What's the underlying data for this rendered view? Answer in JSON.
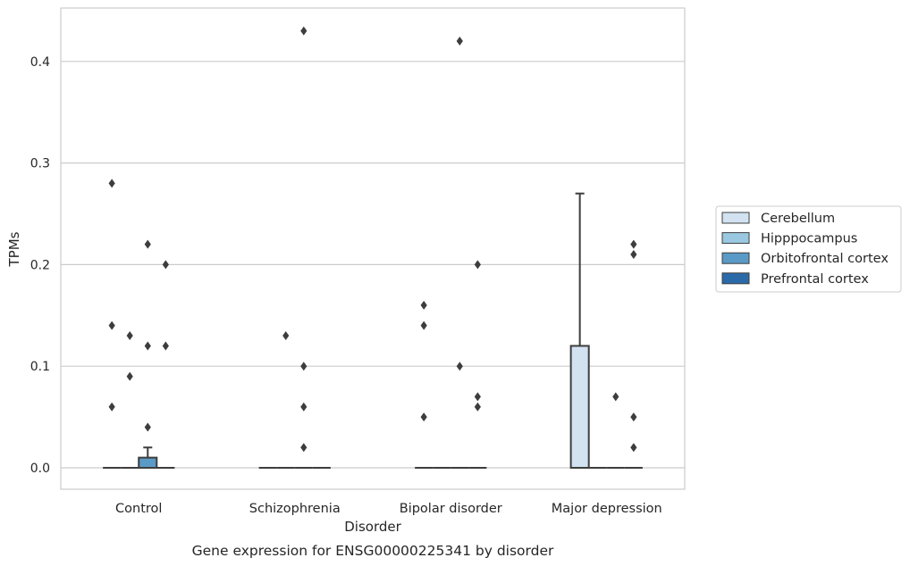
{
  "chart_data": {
    "type": "box",
    "title": "Gene expression for ENSG00000225341 by disorder",
    "xlabel": "Disorder",
    "ylabel": "TPMs",
    "ylim": [
      -0.021,
      0.452
    ],
    "yticks": [
      0.0,
      0.1,
      0.2,
      0.3,
      0.4
    ],
    "ytick_labels": [
      "0.0",
      "0.1",
      "0.2",
      "0.3",
      "0.4"
    ],
    "grid": true,
    "legend_position": "right",
    "categories": [
      "Control",
      "Schizophrenia",
      "Bipolar disorder",
      "Major depression"
    ],
    "series": [
      {
        "name": "Cerebellum",
        "color": "#d2e2f1",
        "boxes": [
          {
            "q1": 0,
            "median": 0,
            "q3": 0,
            "whisker_low": 0,
            "whisker_high": 0,
            "outliers": [
              0.14,
              0.28,
              0.06
            ]
          },
          {
            "q1": 0,
            "median": 0,
            "q3": 0,
            "whisker_low": 0,
            "whisker_high": 0,
            "outliers": []
          },
          {
            "q1": 0,
            "median": 0,
            "q3": 0,
            "whisker_low": 0,
            "whisker_high": 0,
            "outliers": [
              0.16,
              0.14,
              0.05
            ]
          },
          {
            "q1": 0,
            "median": 0,
            "q3": 0.12,
            "whisker_low": 0,
            "whisker_high": 0.27,
            "outliers": []
          }
        ]
      },
      {
        "name": "Hipppocampus",
        "color": "#9ac8e0",
        "boxes": [
          {
            "q1": 0,
            "median": 0,
            "q3": 0,
            "whisker_low": 0,
            "whisker_high": 0,
            "outliers": [
              0.13,
              0.09
            ]
          },
          {
            "q1": 0,
            "median": 0,
            "q3": 0,
            "whisker_low": 0,
            "whisker_high": 0,
            "outliers": [
              0.13
            ]
          },
          {
            "q1": 0,
            "median": 0,
            "q3": 0,
            "whisker_low": 0,
            "whisker_high": 0,
            "outliers": []
          },
          {
            "q1": 0,
            "median": 0,
            "q3": 0,
            "whisker_low": 0,
            "whisker_high": 0,
            "outliers": []
          }
        ]
      },
      {
        "name": "Orbitofrontal cortex",
        "color": "#5a9ac6",
        "boxes": [
          {
            "q1": 0,
            "median": 0,
            "q3": 0.01,
            "whisker_low": 0,
            "whisker_high": 0.02,
            "outliers": [
              0.22,
              0.12,
              0.04
            ]
          },
          {
            "q1": 0,
            "median": 0,
            "q3": 0,
            "whisker_low": 0,
            "whisker_high": 0,
            "outliers": [
              0.43,
              0.1,
              0.06,
              0.02
            ]
          },
          {
            "q1": 0,
            "median": 0,
            "q3": 0,
            "whisker_low": 0,
            "whisker_high": 0,
            "outliers": [
              0.42,
              0.1
            ]
          },
          {
            "q1": 0,
            "median": 0,
            "q3": 0,
            "whisker_low": 0,
            "whisker_high": 0,
            "outliers": [
              0.07
            ]
          }
        ]
      },
      {
        "name": "Prefrontal cortex",
        "color": "#2b6aa8",
        "boxes": [
          {
            "q1": 0,
            "median": 0,
            "q3": 0,
            "whisker_low": 0,
            "whisker_high": 0,
            "outliers": [
              0.2,
              0.12
            ]
          },
          {
            "q1": 0,
            "median": 0,
            "q3": 0,
            "whisker_low": 0,
            "whisker_high": 0,
            "outliers": []
          },
          {
            "q1": 0,
            "median": 0,
            "q3": 0,
            "whisker_low": 0,
            "whisker_high": 0,
            "outliers": [
              0.2,
              0.07,
              0.06
            ]
          },
          {
            "q1": 0,
            "median": 0,
            "q3": 0,
            "whisker_low": 0,
            "whisker_high": 0,
            "outliers": [
              0.21,
              0.05,
              0.02,
              0.22
            ]
          }
        ]
      }
    ]
  }
}
